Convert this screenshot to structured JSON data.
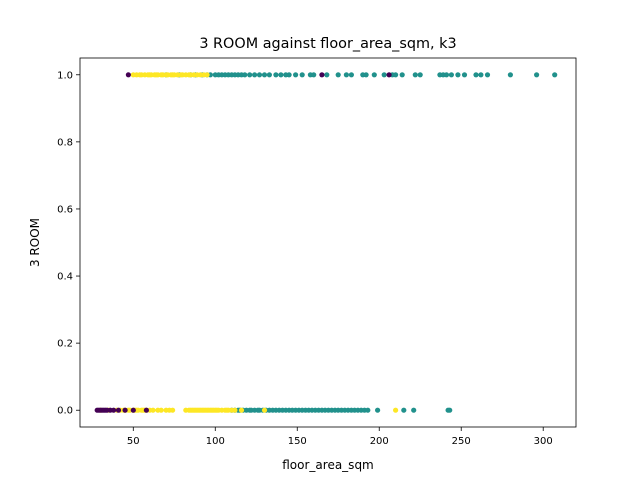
{
  "chart_data": {
    "type": "scatter",
    "title": "3 ROOM against floor_area_sqm, k3",
    "xlabel": "floor_area_sqm",
    "ylabel": "3 ROOM",
    "xlim": [
      17.5,
      320
    ],
    "ylim": [
      -0.05,
      1.05
    ],
    "xticks": [
      50,
      100,
      150,
      200,
      250,
      300
    ],
    "xtick_labels": [
      "50",
      "100",
      "150",
      "200",
      "250",
      "300"
    ],
    "yticks": [
      0,
      0.2,
      0.4,
      0.6,
      0.8,
      1
    ],
    "ytick_labels": [
      "0.0",
      "0.2",
      "0.4",
      "0.6",
      "0.8",
      "1.0"
    ],
    "grid": false,
    "legend": "none",
    "colors": {
      "cluster_purple": "#440154",
      "cluster_teal": "#21918c",
      "cluster_yellow": "#fde725"
    },
    "series": [
      {
        "color": "#21918c",
        "points": [
          [
            70,
            1
          ],
          [
            78,
            1
          ],
          [
            85,
            1
          ],
          [
            88,
            1
          ],
          [
            92,
            1
          ],
          [
            95,
            1
          ],
          [
            97,
            1
          ],
          [
            100,
            1
          ],
          [
            102,
            1
          ],
          [
            104,
            1
          ],
          [
            106,
            1
          ],
          [
            108,
            1
          ],
          [
            110,
            1
          ],
          [
            112,
            1
          ],
          [
            114,
            1
          ],
          [
            116,
            1
          ],
          [
            118,
            1
          ],
          [
            121,
            1
          ],
          [
            124,
            1
          ],
          [
            127,
            1
          ],
          [
            130,
            1
          ],
          [
            133,
            1
          ],
          [
            137,
            1
          ],
          [
            140,
            1
          ],
          [
            143,
            1
          ],
          [
            145,
            1
          ],
          [
            149,
            1
          ],
          [
            153,
            1
          ],
          [
            158,
            1
          ],
          [
            160,
            1
          ],
          [
            168,
            1
          ],
          [
            175,
            1
          ],
          [
            180,
            1
          ],
          [
            183,
            1
          ],
          [
            190,
            1
          ],
          [
            192,
            1
          ],
          [
            197,
            1
          ],
          [
            203,
            1
          ],
          [
            208,
            1
          ],
          [
            210,
            1
          ],
          [
            214,
            1
          ],
          [
            222,
            1
          ],
          [
            225,
            1
          ],
          [
            237,
            1
          ],
          [
            239,
            1
          ],
          [
            241,
            1
          ],
          [
            244,
            1
          ],
          [
            248,
            1
          ],
          [
            252,
            1
          ],
          [
            259,
            1
          ],
          [
            262,
            1
          ],
          [
            266,
            1
          ],
          [
            280,
            1
          ],
          [
            296,
            1
          ],
          [
            307,
            1
          ],
          [
            110,
            0
          ],
          [
            112,
            0
          ],
          [
            114,
            0
          ],
          [
            115,
            0
          ],
          [
            117,
            0
          ],
          [
            119,
            0
          ],
          [
            121,
            0
          ],
          [
            122,
            0
          ],
          [
            124,
            0
          ],
          [
            126,
            0
          ],
          [
            127,
            0
          ],
          [
            129,
            0
          ],
          [
            131,
            0
          ],
          [
            133,
            0
          ],
          [
            135,
            0
          ],
          [
            137,
            0
          ],
          [
            139,
            0
          ],
          [
            141,
            0
          ],
          [
            143,
            0
          ],
          [
            145,
            0
          ],
          [
            147,
            0
          ],
          [
            149,
            0
          ],
          [
            151,
            0
          ],
          [
            153,
            0
          ],
          [
            155,
            0
          ],
          [
            157,
            0
          ],
          [
            159,
            0
          ],
          [
            161,
            0
          ],
          [
            163,
            0
          ],
          [
            165,
            0
          ],
          [
            167,
            0
          ],
          [
            169,
            0
          ],
          [
            171,
            0
          ],
          [
            173,
            0
          ],
          [
            175,
            0
          ],
          [
            177,
            0
          ],
          [
            179,
            0
          ],
          [
            181,
            0
          ],
          [
            183,
            0
          ],
          [
            185,
            0
          ],
          [
            187,
            0
          ],
          [
            189,
            0
          ],
          [
            191,
            0
          ],
          [
            193,
            0
          ],
          [
            199,
            0
          ],
          [
            215,
            0
          ],
          [
            221,
            0
          ],
          [
            242,
            0
          ],
          [
            243,
            0
          ]
        ]
      },
      {
        "color": "#fde725",
        "points": [
          [
            50,
            1
          ],
          [
            52,
            1
          ],
          [
            54,
            1
          ],
          [
            55,
            1
          ],
          [
            57,
            1
          ],
          [
            59,
            1
          ],
          [
            60,
            1
          ],
          [
            61,
            1
          ],
          [
            63,
            1
          ],
          [
            64,
            1
          ],
          [
            65,
            1
          ],
          [
            67,
            1
          ],
          [
            68,
            1
          ],
          [
            70,
            1
          ],
          [
            71,
            1
          ],
          [
            73,
            1
          ],
          [
            74,
            1
          ],
          [
            75,
            1
          ],
          [
            77,
            1
          ],
          [
            79,
            1
          ],
          [
            80,
            1
          ],
          [
            82,
            1
          ],
          [
            84,
            1
          ],
          [
            85,
            1
          ],
          [
            87,
            1
          ],
          [
            89,
            1
          ],
          [
            91,
            1
          ],
          [
            93,
            1
          ],
          [
            95,
            1
          ],
          [
            30,
            0
          ],
          [
            35,
            0
          ],
          [
            40,
            0
          ],
          [
            42,
            0
          ],
          [
            44,
            0
          ],
          [
            45,
            0
          ],
          [
            47,
            0
          ],
          [
            48,
            0
          ],
          [
            50,
            0
          ],
          [
            51,
            0
          ],
          [
            52,
            0
          ],
          [
            53,
            0
          ],
          [
            55,
            0
          ],
          [
            56,
            0
          ],
          [
            57,
            0
          ],
          [
            58,
            0
          ],
          [
            60,
            0
          ],
          [
            62,
            0
          ],
          [
            65,
            0
          ],
          [
            67,
            0
          ],
          [
            70,
            0
          ],
          [
            72,
            0
          ],
          [
            74,
            0
          ],
          [
            82,
            0
          ],
          [
            84,
            0
          ],
          [
            85,
            0
          ],
          [
            86,
            0
          ],
          [
            87,
            0
          ],
          [
            88,
            0
          ],
          [
            89,
            0
          ],
          [
            90,
            0
          ],
          [
            91,
            0
          ],
          [
            92,
            0
          ],
          [
            93,
            0
          ],
          [
            94,
            0
          ],
          [
            95,
            0
          ],
          [
            96,
            0
          ],
          [
            97,
            0
          ],
          [
            98,
            0
          ],
          [
            99,
            0
          ],
          [
            100,
            0
          ],
          [
            101,
            0
          ],
          [
            102,
            0
          ],
          [
            104,
            0
          ],
          [
            106,
            0
          ],
          [
            107,
            0
          ],
          [
            108,
            0
          ],
          [
            110,
            0
          ],
          [
            112,
            0
          ],
          [
            116,
            0
          ],
          [
            130,
            0
          ],
          [
            210,
            0
          ]
        ]
      },
      {
        "color": "#440154",
        "points": [
          [
            47,
            1
          ],
          [
            165,
            1
          ],
          [
            206,
            1
          ],
          [
            28,
            0
          ],
          [
            29,
            0
          ],
          [
            30,
            0
          ],
          [
            31,
            0
          ],
          [
            32,
            0
          ],
          [
            33,
            0
          ],
          [
            34,
            0
          ],
          [
            36,
            0
          ],
          [
            38,
            0
          ],
          [
            41,
            0
          ],
          [
            45,
            0
          ],
          [
            50,
            0
          ],
          [
            58,
            0
          ]
        ]
      }
    ]
  }
}
